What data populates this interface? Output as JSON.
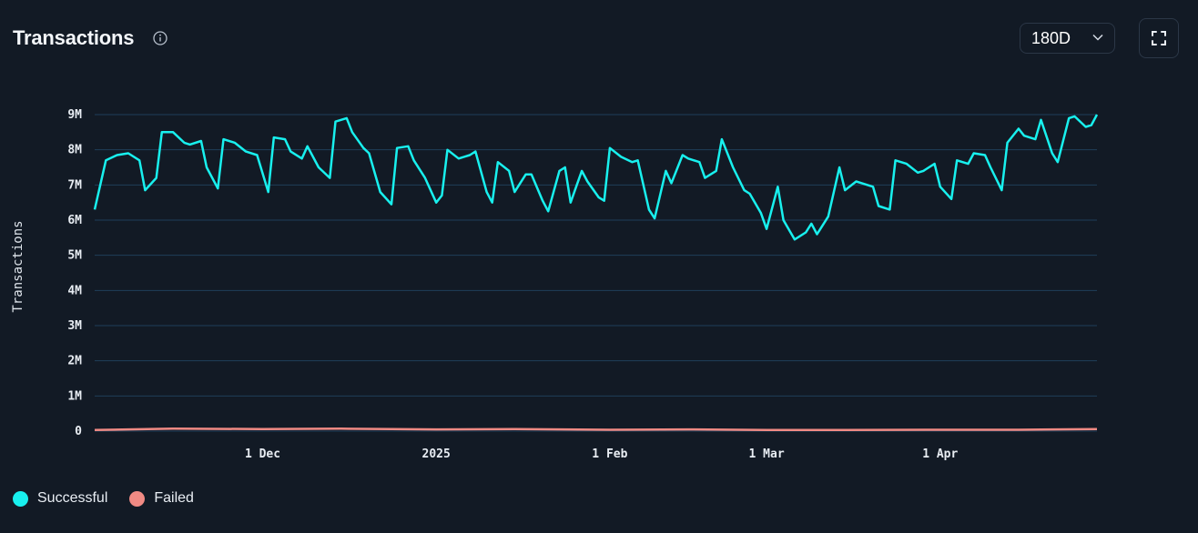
{
  "header": {
    "title": "Transactions",
    "info_icon": "info-icon",
    "range_value": "180D",
    "fullscreen_icon": "expand-icon"
  },
  "colors": {
    "background": "#121a25",
    "successful": "#18f0ee",
    "failed": "#f08a84",
    "grid": "#1f3f5a"
  },
  "chart_data": {
    "type": "line",
    "ylabel": "Transactions",
    "ylim": [
      0,
      9000000
    ],
    "y_ticks": [
      {
        "value": 0,
        "label": "0"
      },
      {
        "value": 1000000,
        "label": "1M"
      },
      {
        "value": 2000000,
        "label": "2M"
      },
      {
        "value": 3000000,
        "label": "3M"
      },
      {
        "value": 4000000,
        "label": "4M"
      },
      {
        "value": 5000000,
        "label": "5M"
      },
      {
        "value": 6000000,
        "label": "6M"
      },
      {
        "value": 7000000,
        "label": "7M"
      },
      {
        "value": 8000000,
        "label": "8M"
      },
      {
        "value": 9000000,
        "label": "9M"
      }
    ],
    "xlim": [
      "2024-11-01",
      "2025-04-29"
    ],
    "x_ticks": [
      {
        "date": "2024-12-01",
        "label": "1 Dec"
      },
      {
        "date": "2025-01-01",
        "label": "2025"
      },
      {
        "date": "2025-02-01",
        "label": "1 Feb"
      },
      {
        "date": "2025-03-01",
        "label": "1 Mar"
      },
      {
        "date": "2025-04-01",
        "label": "1 Apr"
      }
    ],
    "grid": true,
    "legend_position": "bottom-left",
    "series": [
      {
        "name": "Successful",
        "color": "#18f0ee",
        "points": [
          [
            "2024-11-01",
            6300000
          ],
          [
            "2024-11-03",
            7700000
          ],
          [
            "2024-11-05",
            7850000
          ],
          [
            "2024-11-07",
            7900000
          ],
          [
            "2024-11-09",
            7700000
          ],
          [
            "2024-11-10",
            6850000
          ],
          [
            "2024-11-12",
            7200000
          ],
          [
            "2024-11-13",
            8500000
          ],
          [
            "2024-11-15",
            8500000
          ],
          [
            "2024-11-17",
            8200000
          ],
          [
            "2024-11-18",
            8150000
          ],
          [
            "2024-11-20",
            8250000
          ],
          [
            "2024-11-21",
            7500000
          ],
          [
            "2024-11-23",
            6900000
          ],
          [
            "2024-11-24",
            8300000
          ],
          [
            "2024-11-26",
            8200000
          ],
          [
            "2024-11-28",
            7950000
          ],
          [
            "2024-11-30",
            7850000
          ],
          [
            "2024-12-02",
            6800000
          ],
          [
            "2024-12-03",
            8350000
          ],
          [
            "2024-12-05",
            8300000
          ],
          [
            "2024-12-06",
            7950000
          ],
          [
            "2024-12-08",
            7750000
          ],
          [
            "2024-12-09",
            8100000
          ],
          [
            "2024-12-11",
            7500000
          ],
          [
            "2024-12-13",
            7200000
          ],
          [
            "2024-12-14",
            8800000
          ],
          [
            "2024-12-16",
            8900000
          ],
          [
            "2024-12-17",
            8500000
          ],
          [
            "2024-12-19",
            8050000
          ],
          [
            "2024-12-20",
            7900000
          ],
          [
            "2024-12-22",
            6800000
          ],
          [
            "2024-12-24",
            6450000
          ],
          [
            "2024-12-25",
            8050000
          ],
          [
            "2024-12-27",
            8100000
          ],
          [
            "2024-12-28",
            7700000
          ],
          [
            "2024-12-30",
            7200000
          ],
          [
            "2025-01-01",
            6500000
          ],
          [
            "2025-01-02",
            6700000
          ],
          [
            "2025-01-03",
            8000000
          ],
          [
            "2025-01-05",
            7750000
          ],
          [
            "2025-01-07",
            7850000
          ],
          [
            "2025-01-08",
            7950000
          ],
          [
            "2025-01-10",
            6800000
          ],
          [
            "2025-01-11",
            6500000
          ],
          [
            "2025-01-12",
            7650000
          ],
          [
            "2025-01-14",
            7400000
          ],
          [
            "2025-01-15",
            6800000
          ],
          [
            "2025-01-17",
            7300000
          ],
          [
            "2025-01-18",
            7300000
          ],
          [
            "2025-01-20",
            6550000
          ],
          [
            "2025-01-21",
            6250000
          ],
          [
            "2025-01-23",
            7400000
          ],
          [
            "2025-01-24",
            7500000
          ],
          [
            "2025-01-25",
            6500000
          ],
          [
            "2025-01-27",
            7400000
          ],
          [
            "2025-01-28",
            7100000
          ],
          [
            "2025-01-30",
            6650000
          ],
          [
            "2025-01-31",
            6550000
          ],
          [
            "2025-02-01",
            8050000
          ],
          [
            "2025-02-03",
            7800000
          ],
          [
            "2025-02-05",
            7650000
          ],
          [
            "2025-02-06",
            7700000
          ],
          [
            "2025-02-08",
            6300000
          ],
          [
            "2025-02-09",
            6050000
          ],
          [
            "2025-02-11",
            7400000
          ],
          [
            "2025-02-12",
            7050000
          ],
          [
            "2025-02-14",
            7850000
          ],
          [
            "2025-02-15",
            7750000
          ],
          [
            "2025-02-17",
            7650000
          ],
          [
            "2025-02-18",
            7200000
          ],
          [
            "2025-02-20",
            7400000
          ],
          [
            "2025-02-21",
            8300000
          ],
          [
            "2025-02-23",
            7500000
          ],
          [
            "2025-02-25",
            6850000
          ],
          [
            "2025-02-26",
            6750000
          ],
          [
            "2025-02-28",
            6200000
          ],
          [
            "2025-03-01",
            5750000
          ],
          [
            "2025-03-03",
            6950000
          ],
          [
            "2025-03-04",
            6000000
          ],
          [
            "2025-03-06",
            5450000
          ],
          [
            "2025-03-08",
            5650000
          ],
          [
            "2025-03-09",
            5900000
          ],
          [
            "2025-03-10",
            5600000
          ],
          [
            "2025-03-12",
            6100000
          ],
          [
            "2025-03-14",
            7500000
          ],
          [
            "2025-03-15",
            6850000
          ],
          [
            "2025-03-17",
            7100000
          ],
          [
            "2025-03-18",
            7050000
          ],
          [
            "2025-03-20",
            6950000
          ],
          [
            "2025-03-21",
            6400000
          ],
          [
            "2025-03-23",
            6300000
          ],
          [
            "2025-03-24",
            7700000
          ],
          [
            "2025-03-26",
            7600000
          ],
          [
            "2025-03-28",
            7350000
          ],
          [
            "2025-03-29",
            7400000
          ],
          [
            "2025-03-31",
            7600000
          ],
          [
            "2025-04-01",
            6950000
          ],
          [
            "2025-04-03",
            6600000
          ],
          [
            "2025-04-04",
            7700000
          ],
          [
            "2025-04-06",
            7600000
          ],
          [
            "2025-04-07",
            7900000
          ],
          [
            "2025-04-09",
            7850000
          ],
          [
            "2025-04-10",
            7500000
          ],
          [
            "2025-04-12",
            6850000
          ],
          [
            "2025-04-13",
            8200000
          ],
          [
            "2025-04-15",
            8600000
          ],
          [
            "2025-04-16",
            8400000
          ],
          [
            "2025-04-18",
            8300000
          ],
          [
            "2025-04-19",
            8850000
          ],
          [
            "2025-04-21",
            7900000
          ],
          [
            "2025-04-22",
            7650000
          ],
          [
            "2025-04-24",
            8900000
          ],
          [
            "2025-04-25",
            8950000
          ],
          [
            "2025-04-27",
            8650000
          ],
          [
            "2025-04-28",
            8700000
          ],
          [
            "2025-04-29",
            9000000
          ]
        ]
      },
      {
        "name": "Failed",
        "color": "#f08a84",
        "points": [
          [
            "2024-11-01",
            30000
          ],
          [
            "2024-11-15",
            70000
          ],
          [
            "2024-12-01",
            60000
          ],
          [
            "2024-12-15",
            70000
          ],
          [
            "2025-01-01",
            50000
          ],
          [
            "2025-01-15",
            60000
          ],
          [
            "2025-02-01",
            40000
          ],
          [
            "2025-02-15",
            50000
          ],
          [
            "2025-03-01",
            30000
          ],
          [
            "2025-03-15",
            30000
          ],
          [
            "2025-04-01",
            40000
          ],
          [
            "2025-04-15",
            40000
          ],
          [
            "2025-04-29",
            60000
          ]
        ]
      }
    ]
  },
  "legend": [
    {
      "label": "Successful",
      "color": "#18f0ee"
    },
    {
      "label": "Failed",
      "color": "#f08a84"
    }
  ]
}
